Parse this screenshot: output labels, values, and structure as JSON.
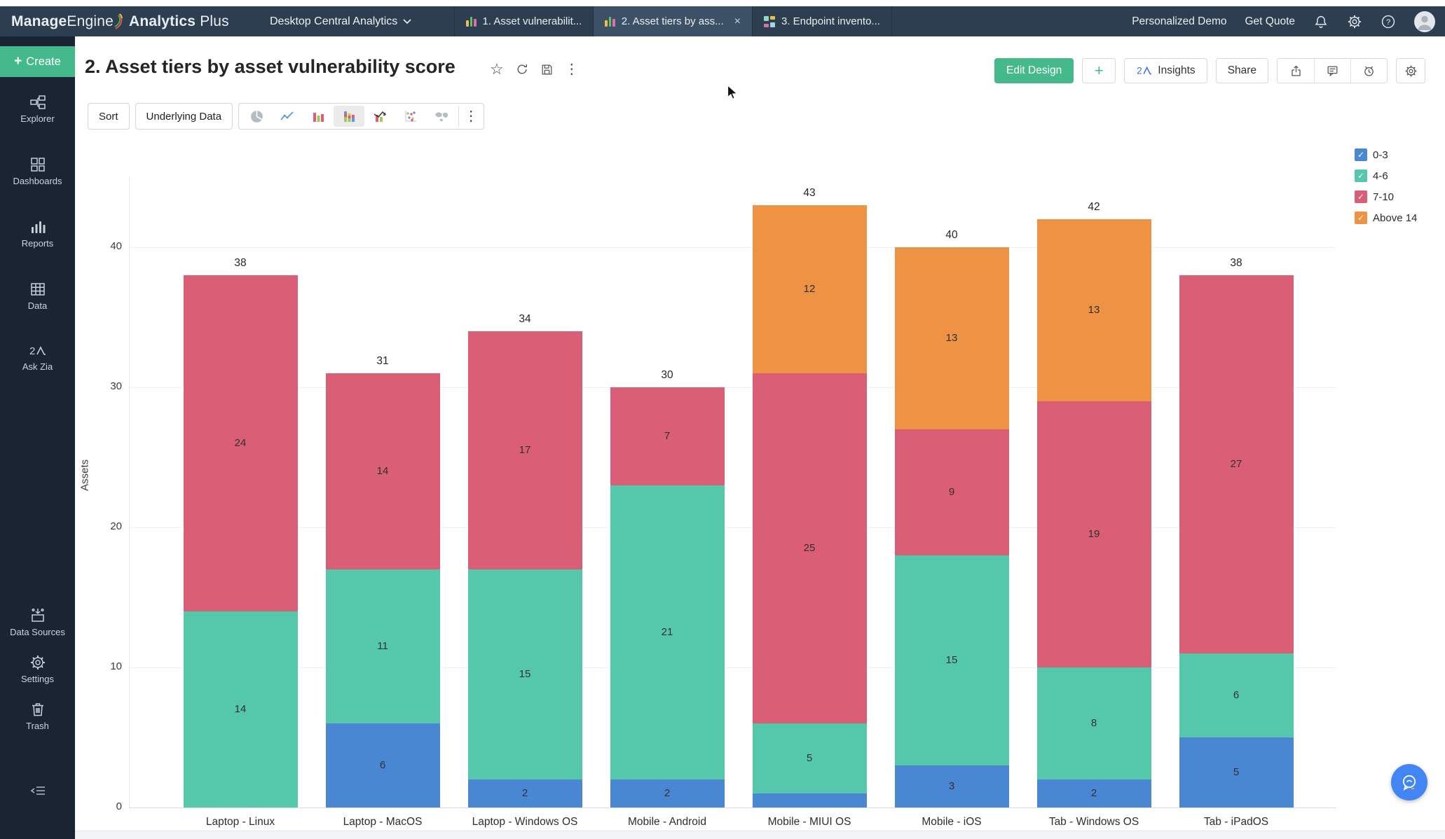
{
  "topbar": {
    "logo": {
      "part1_bold": "Manage",
      "part1": "Engine",
      "part2_bold": "Analytics",
      "part2": "Plus"
    },
    "workspace_selector": "Desktop Central Analytics",
    "tabs": [
      {
        "label": "1. Asset vulnerabilit..."
      },
      {
        "label": "2. Asset tiers by ass..."
      },
      {
        "label": "3. Endpoint invento..."
      }
    ],
    "close_tab_glyph": "×",
    "personalized_demo": "Personalized Demo",
    "get_quote": "Get Quote"
  },
  "sidebar": {
    "create": "Create",
    "create_plus": "+",
    "items": [
      "Explorer",
      "Dashboards",
      "Reports",
      "Data",
      "Ask Zia"
    ],
    "bottom_items": [
      "Data Sources",
      "Settings",
      "Trash"
    ]
  },
  "header": {
    "title": "2. Asset tiers by asset vulnerability score",
    "edit_design": "Edit Design",
    "plus": "+",
    "insights": "Insights",
    "share": "Share"
  },
  "toolbar": {
    "sort": "Sort",
    "underlying_data": "Underlying Data"
  },
  "chart_data": {
    "type": "bar",
    "stacked": true,
    "title": "2. Asset tiers by asset vulnerability score",
    "xlabel": "",
    "ylabel": "Assets",
    "categories": [
      "Laptop - Linux",
      "Laptop - MacOS",
      "Laptop - Windows OS",
      "Mobile - Android",
      "Mobile - MIUI OS",
      "Mobile - iOS",
      "Tab - Windows OS",
      "Tab - iPadOS"
    ],
    "series": [
      {
        "name": "0-3",
        "color": "#4a87d3",
        "values": [
          0,
          6,
          2,
          2,
          1,
          3,
          2,
          5
        ]
      },
      {
        "name": "4-6",
        "color": "#55c8ac",
        "values": [
          14,
          11,
          15,
          21,
          5,
          15,
          8,
          6
        ]
      },
      {
        "name": "7-10",
        "color": "#d95e76",
        "values": [
          24,
          14,
          17,
          7,
          25,
          9,
          19,
          27
        ]
      },
      {
        "name": "Above 14",
        "color": "#ee9243",
        "values": [
          0,
          0,
          0,
          0,
          12,
          13,
          13,
          0
        ]
      }
    ],
    "totals": [
      38,
      31,
      34,
      30,
      43,
      40,
      42,
      38
    ],
    "yticks": [
      0,
      10,
      20,
      30,
      40
    ],
    "ylim": [
      0,
      45
    ],
    "grid": true,
    "legend_position": "top-right",
    "legend_checkmark": "✓",
    "min_label_value": 2
  },
  "colors": {
    "topbar_bg": "#2d3e50",
    "sidebar_bg": "#1b2433",
    "accent_green": "#45b88c",
    "zia_blue": "#3a6fd8"
  }
}
